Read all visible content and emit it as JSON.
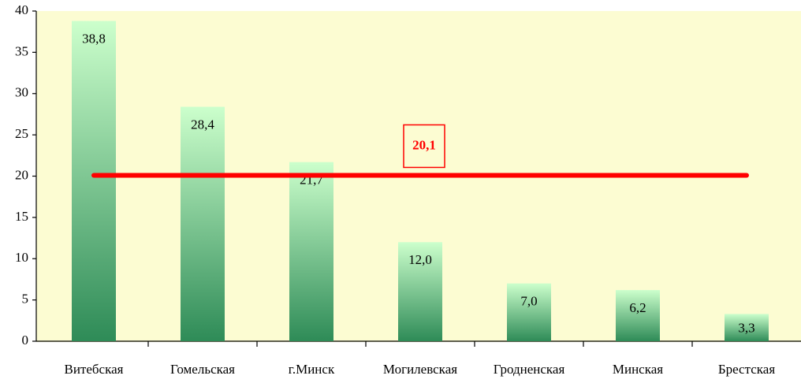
{
  "chart_data": {
    "type": "bar",
    "categories": [
      "Витебская",
      "Гомельская",
      "г.Минск",
      "Могилевская",
      "Гродненская",
      "Минская",
      "Брестская"
    ],
    "values": [
      38.8,
      28.4,
      21.7,
      12.0,
      7.0,
      6.2,
      3.3
    ],
    "value_labels": [
      "38,8",
      "28,4",
      "21,7",
      "12,0",
      "7,0",
      "6,2",
      "3,3"
    ],
    "color": [
      "#ccffcc",
      "#2e8b57"
    ],
    "ylim": [
      0,
      40
    ],
    "yticks": [
      0,
      5,
      10,
      15,
      20,
      25,
      30,
      35,
      40
    ],
    "reference_line": {
      "value": 20.1,
      "label": "20,1",
      "color": "#ff0000"
    }
  }
}
